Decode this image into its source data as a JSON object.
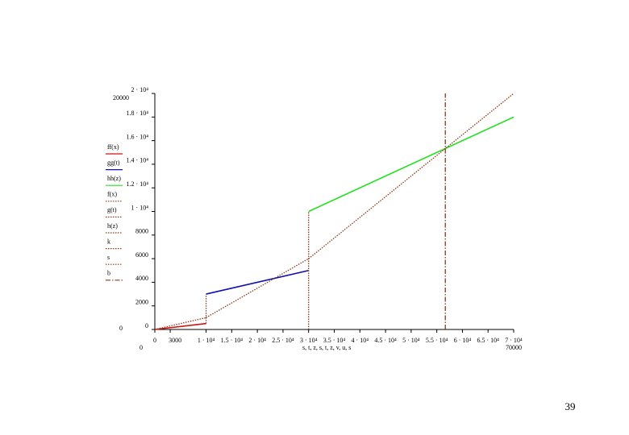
{
  "chart_data": {
    "type": "line",
    "xlabel": "s, t, z, s, t, z, v, u, s",
    "xlim": [
      0,
      70000
    ],
    "ylim": [
      0,
      20000
    ],
    "xticks": [
      0,
      3000,
      {
        "value": 10000,
        "label": "1 · 10⁴"
      },
      {
        "value": 15000,
        "label": "1.5 · 10⁴"
      },
      {
        "value": 20000,
        "label": "2 · 10⁴"
      },
      {
        "value": 25000,
        "label": "2.5 · 10⁴"
      },
      {
        "value": 30000,
        "label": "3 · 10⁴"
      },
      {
        "value": 35000,
        "label": "3.5 · 10⁴"
      },
      {
        "value": 40000,
        "label": "4 · 10⁴"
      },
      {
        "value": 45000,
        "label": "4.5 · 10⁴"
      },
      {
        "value": 50000,
        "label": "5 · 10⁴"
      },
      {
        "value": 55000,
        "label": "5.5 · 10⁴"
      },
      {
        "value": 60000,
        "label": "6 · 10⁴"
      },
      {
        "value": 65000,
        "label": "6.5 · 10⁴"
      },
      {
        "value": 70000,
        "label": "7 · 10⁴"
      }
    ],
    "yticks": [
      0,
      2000,
      4000,
      6000,
      8000,
      {
        "value": 10000,
        "label": "1 · 10⁴"
      },
      {
        "value": 12000,
        "label": "1.2 · 10⁴"
      },
      {
        "value": 14000,
        "label": "1.4 · 10⁴"
      },
      {
        "value": 16000,
        "label": "1.6 · 10⁴"
      },
      {
        "value": 18000,
        "label": "1.8 · 10⁴"
      },
      {
        "value": 20000,
        "label": "2 · 10⁴"
      }
    ],
    "grid": false,
    "legend": "left",
    "series": [
      {
        "name": "ff(x)",
        "color": "#d01010",
        "style": "solid",
        "x": [
          0,
          10000
        ],
        "values": [
          0,
          500
        ]
      },
      {
        "name": "gg(t)",
        "color": "#1010b0",
        "style": "solid",
        "x": [
          10000,
          30000
        ],
        "values": [
          3000,
          5000
        ]
      },
      {
        "name": "hh(z)",
        "color": "#20e020",
        "style": "solid",
        "x": [
          30000,
          70000
        ],
        "values": [
          10000,
          18000
        ]
      },
      {
        "name": "f(x)",
        "color": "#8b3a1a",
        "style": "dotted",
        "x": [
          0,
          10000
        ],
        "values": [
          0,
          1000
        ]
      },
      {
        "name": "g(t)",
        "color": "#8b3a1a",
        "style": "dotted",
        "x": [
          10000,
          30000
        ],
        "values": [
          1000,
          6000
        ]
      },
      {
        "name": "h(z)",
        "color": "#8b3a1a",
        "style": "dotted",
        "x": [
          30000,
          70000
        ],
        "values": [
          6000,
          20000
        ]
      },
      {
        "name": "k",
        "color": "#8b3a1a",
        "style": "dotted",
        "x": [
          10000,
          10000
        ],
        "values": [
          500,
          3000
        ]
      },
      {
        "name": "s",
        "color": "#8b3a1a",
        "style": "dotted",
        "x": [
          30000,
          30000
        ],
        "values": [
          0,
          10000
        ]
      },
      {
        "name": "b",
        "color": "#8b3a1a",
        "style": "dashdot",
        "x": [
          56667,
          56667
        ],
        "values": [
          0,
          20000
        ]
      }
    ]
  },
  "page_number": "39"
}
